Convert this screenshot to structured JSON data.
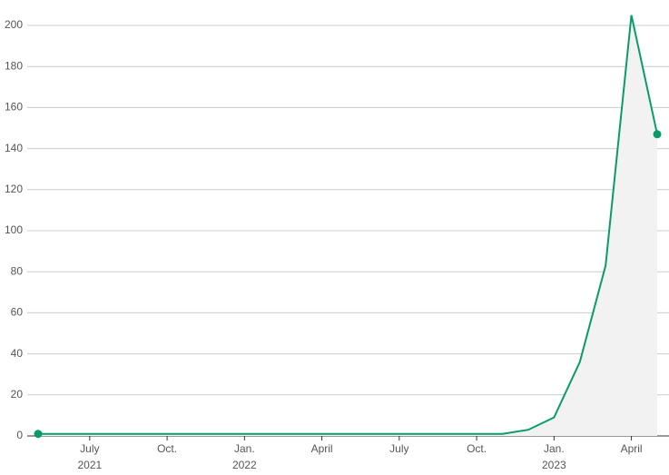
{
  "chart_data": {
    "type": "line",
    "x": [
      "2021-05",
      "2021-06",
      "2021-07",
      "2021-08",
      "2021-09",
      "2021-10",
      "2021-11",
      "2021-12",
      "2022-01",
      "2022-02",
      "2022-03",
      "2022-04",
      "2022-05",
      "2022-06",
      "2022-07",
      "2022-08",
      "2022-09",
      "2022-10",
      "2022-11",
      "2022-12",
      "2023-01",
      "2023-02",
      "2023-03",
      "2023-04",
      "2023-05"
    ],
    "series": [
      {
        "color": "#0a9b6b",
        "values": [
          1,
          1,
          1,
          1,
          1,
          1,
          1,
          1,
          1,
          1,
          1,
          1,
          1,
          1,
          1,
          1,
          1,
          1,
          1,
          3,
          9,
          36,
          83,
          205,
          147
        ]
      }
    ],
    "area_color": "#f2f2f2",
    "xlim": [
      "2021-05",
      "2023-05"
    ],
    "xticks": [
      {
        "value": "2021-07",
        "label": "July"
      },
      {
        "value": "2021-10",
        "label": "Oct."
      },
      {
        "value": "2022-01",
        "label": "Jan."
      },
      {
        "value": "2022-04",
        "label": "April"
      },
      {
        "value": "2022-07",
        "label": "July"
      },
      {
        "value": "2022-10",
        "label": "Oct."
      },
      {
        "value": "2023-01",
        "label": "Jan."
      },
      {
        "value": "2023-04",
        "label": "April"
      }
    ],
    "xtick_years": [
      {
        "value": "2021-07",
        "label": "2021"
      },
      {
        "value": "2022-01",
        "label": "2022"
      },
      {
        "value": "2023-01",
        "label": "2023"
      }
    ],
    "ylim": [
      0,
      210
    ],
    "yticks": [
      0,
      20,
      40,
      60,
      80,
      100,
      120,
      140,
      160,
      180,
      200
    ],
    "grid": true
  }
}
